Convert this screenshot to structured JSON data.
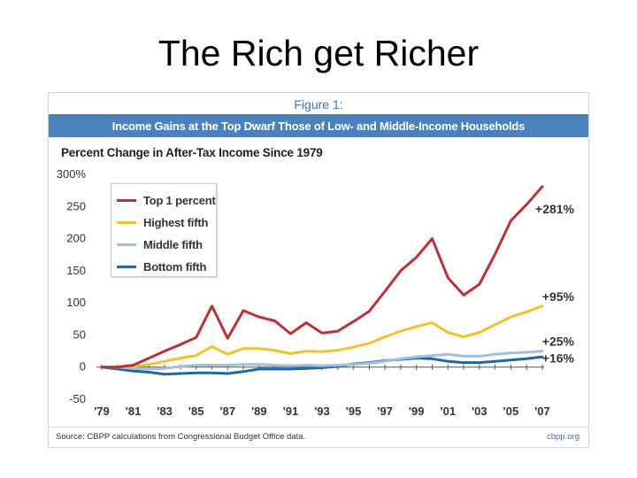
{
  "slide": {
    "title": "The Rich get Richer"
  },
  "figure": {
    "label": "Figure 1:",
    "headline": "Income Gains at the Top Dwarf Those of Low- and Middle-Income Households",
    "source": "Source: CBPP calculations from Congressional Budget Office data.",
    "credit": "cbpp.org"
  },
  "chart_data": {
    "type": "line",
    "title": "Percent Change in After-Tax Income Since 1979",
    "xlabel": "",
    "ylabel": "",
    "x": [
      1979,
      1980,
      1981,
      1982,
      1983,
      1984,
      1985,
      1986,
      1987,
      1988,
      1989,
      1990,
      1991,
      1992,
      1993,
      1994,
      1995,
      1996,
      1997,
      1998,
      1999,
      2000,
      2001,
      2002,
      2003,
      2004,
      2005,
      2006,
      2007
    ],
    "x_tick_values": [
      1979,
      1981,
      1983,
      1985,
      1987,
      1989,
      1991,
      1993,
      1995,
      1997,
      1999,
      2001,
      2003,
      2005,
      2007
    ],
    "x_tick_labels": [
      "'79",
      "'81",
      "'83",
      "'85",
      "'87",
      "'89",
      "'91",
      "'93",
      "'95",
      "'97",
      "'99",
      "'01",
      "'03",
      "'05",
      "'07"
    ],
    "ylim": [
      -50,
      300
    ],
    "y_tick_values": [
      -50,
      0,
      50,
      100,
      150,
      200,
      250,
      300
    ],
    "y_tick_labels": [
      "-50",
      "0",
      "50",
      "100",
      "150",
      "200",
      "250",
      "300%"
    ],
    "grid": false,
    "legend_position": "top-left",
    "series": [
      {
        "name": "Top 1 percent",
        "color": "#b8323a",
        "values": [
          0,
          0,
          3,
          14,
          25,
          35,
          46,
          95,
          45,
          88,
          78,
          72,
          52,
          69,
          53,
          56,
          71,
          87,
          118,
          150,
          171,
          200,
          139,
          112,
          129,
          176,
          228,
          253,
          281
        ],
        "end_label": "+281%"
      },
      {
        "name": "Highest fifth",
        "color": "#f2c12e",
        "values": [
          0,
          0,
          1,
          4,
          9,
          14,
          18,
          32,
          20,
          29,
          29,
          26,
          21,
          25,
          24,
          26,
          31,
          37,
          47,
          56,
          63,
          69,
          54,
          47,
          54,
          66,
          78,
          86,
          95
        ],
        "end_label": "+95%"
      },
      {
        "name": "Middle fifth",
        "color": "#a3bfdb",
        "values": [
          0,
          0,
          -2,
          -3,
          -2,
          1,
          3,
          3,
          3,
          4,
          4,
          3,
          2,
          3,
          2,
          3,
          4,
          6,
          9,
          13,
          16,
          18,
          20,
          17,
          17,
          20,
          22,
          23,
          25
        ],
        "end_label": "+25%"
      },
      {
        "name": "Bottom fifth",
        "color": "#2166a6",
        "values": [
          0,
          -3,
          -6,
          -8,
          -11,
          -10,
          -9,
          -9,
          -10,
          -7,
          -3,
          -3,
          -3,
          -2,
          -1,
          1,
          5,
          7,
          10,
          12,
          14,
          13,
          9,
          7,
          7,
          9,
          11,
          13,
          16
        ],
        "end_label": "+16%"
      }
    ]
  }
}
